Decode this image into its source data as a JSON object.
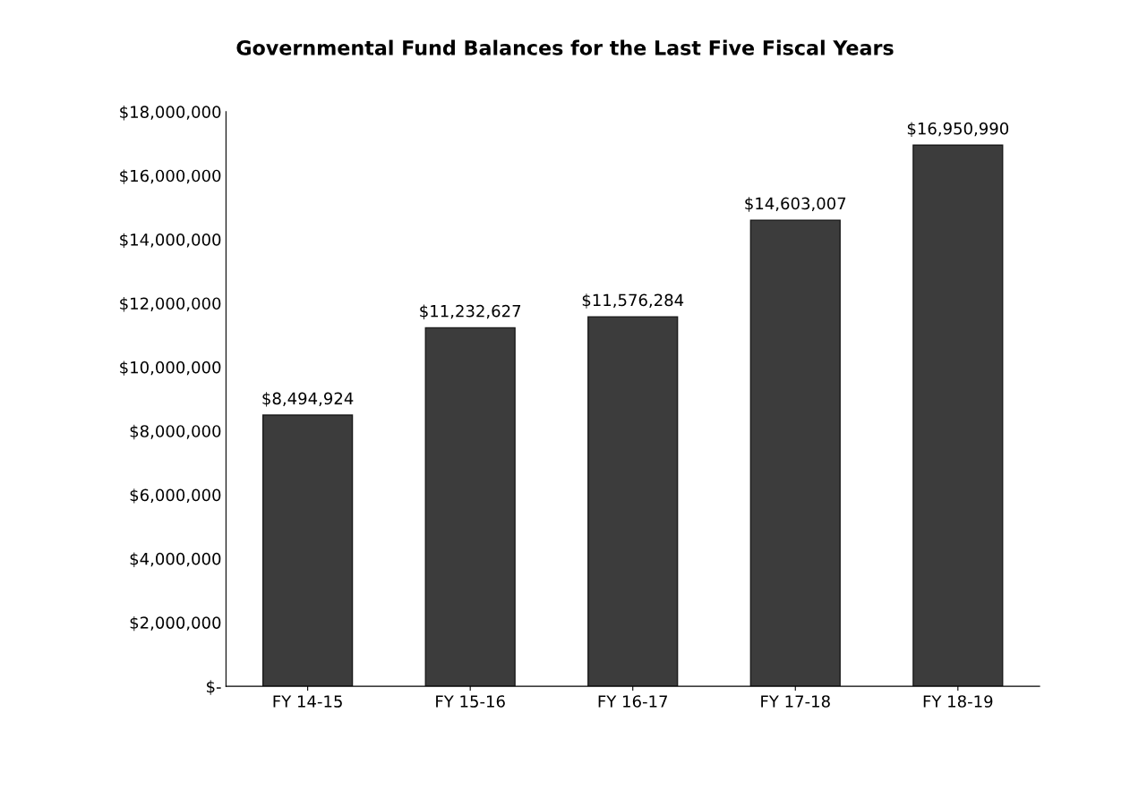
{
  "chart_data": {
    "type": "bar",
    "title": "Governmental Fund Balances for the Last Five Fiscal Years",
    "categories": [
      "FY 14-15",
      "FY 15-16",
      "FY 16-17",
      "FY 17-18",
      "FY 18-19"
    ],
    "values": [
      8494924,
      11232627,
      11576284,
      14603007,
      16950990
    ],
    "value_labels": [
      "$8,494,924",
      "$11,232,627",
      "$11,576,284",
      "$14,603,007",
      "$16,950,990"
    ],
    "color": "#3c3c3c",
    "ylim": [
      0,
      18000000
    ],
    "yticks": [
      {
        "value": 0,
        "label": "$-"
      },
      {
        "value": 2000000,
        "label": "$2,000,000"
      },
      {
        "value": 4000000,
        "label": "$4,000,000"
      },
      {
        "value": 6000000,
        "label": "$6,000,000"
      },
      {
        "value": 8000000,
        "label": "$8,000,000"
      },
      {
        "value": 10000000,
        "label": "$10,000,000"
      },
      {
        "value": 12000000,
        "label": "$12,000,000"
      },
      {
        "value": 14000000,
        "label": "$14,000,000"
      },
      {
        "value": 16000000,
        "label": "$16,000,000"
      },
      {
        "value": 18000000,
        "label": "$18,000,000"
      }
    ],
    "grid": false
  }
}
